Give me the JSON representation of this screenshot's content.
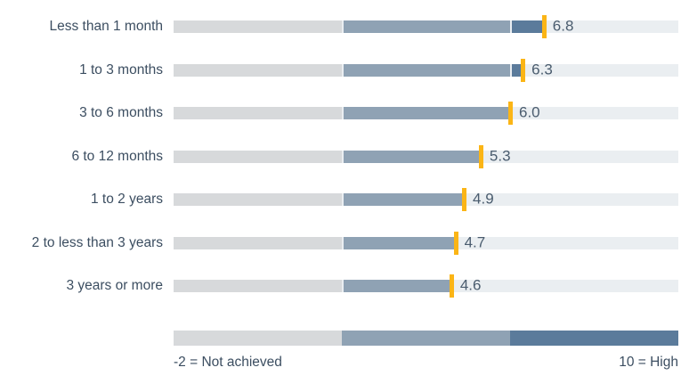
{
  "chart_data": {
    "type": "bar",
    "variant": "bullet",
    "orientation": "horizontal",
    "title": "",
    "categories": [
      "Less than 1 month",
      "1 to 3 months",
      "3 to 6 months",
      "6 to 12 months",
      "1 to 2 years",
      "2 to less than 3 years",
      "3 years or more"
    ],
    "values": [
      6.8,
      6.3,
      6.0,
      5.3,
      4.9,
      4.7,
      4.6
    ],
    "value_labels": [
      "6.8",
      "6.3",
      "6.0",
      "5.3",
      "4.9",
      "4.7",
      "4.6"
    ],
    "xlim": [
      -2,
      10
    ],
    "band_boundaries": [
      -2,
      2,
      6,
      10
    ],
    "marker_style": "vertical tick at value",
    "grid": false,
    "legend_position": "bottom",
    "axis_note_left": "-2 = Not achieved",
    "axis_note_right": "10 = High",
    "colors": {
      "band_low": "#d7d9db",
      "band_mid": "#8fa2b4",
      "band_high": "#5b7b9b",
      "track": "#eaeef1",
      "marker": "#fbb516",
      "label_text": "#3c4e61",
      "value_text": "#4a5c6e"
    }
  }
}
